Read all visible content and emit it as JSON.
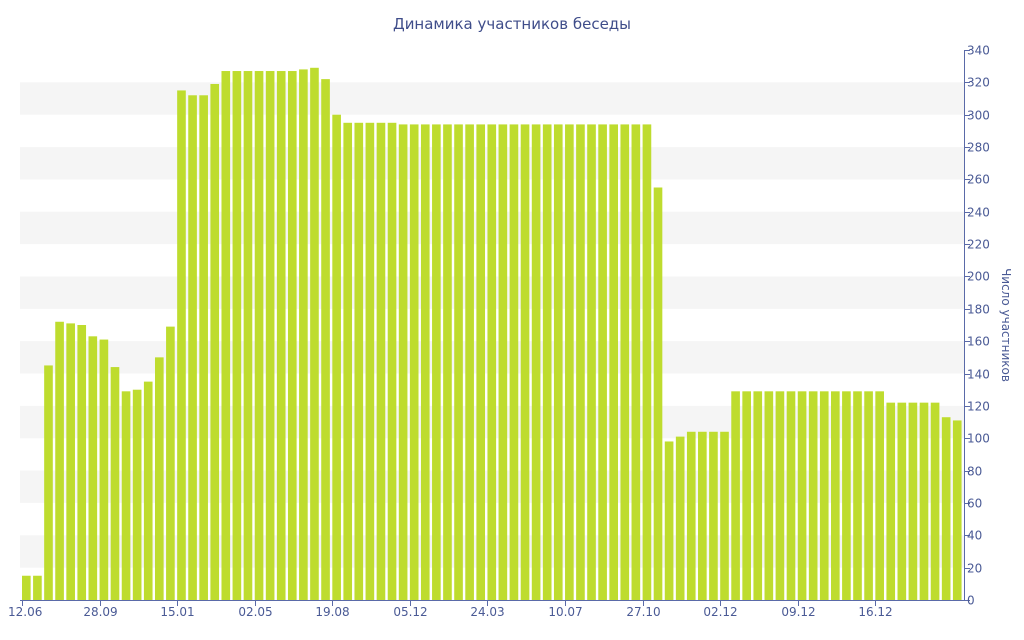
{
  "chart_data": {
    "type": "bar",
    "title": "Динамика участников беседы",
    "xlabel": "",
    "ylabel": "Число участников",
    "ylim": [
      0,
      340
    ],
    "yticks": [
      0,
      20,
      40,
      60,
      80,
      100,
      120,
      140,
      160,
      180,
      200,
      220,
      240,
      260,
      280,
      300,
      320,
      340
    ],
    "x_tick_labels": [
      {
        "label": "12.06",
        "index": 0
      },
      {
        "label": "28.09",
        "index": 7
      },
      {
        "label": "15.01",
        "index": 14
      },
      {
        "label": "02.05",
        "index": 21
      },
      {
        "label": "19.08",
        "index": 28
      },
      {
        "label": "05.12",
        "index": 35
      },
      {
        "label": "24.03",
        "index": 42
      },
      {
        "label": "10.07",
        "index": 49
      },
      {
        "label": "27.10",
        "index": 56
      },
      {
        "label": "02.12",
        "index": 63
      },
      {
        "label": "09.12",
        "index": 70
      },
      {
        "label": "16.12",
        "index": 77
      }
    ],
    "bar_color": "#bedc2e",
    "grid": "alternating horizontal bands",
    "values": [
      15,
      15,
      145,
      172,
      171,
      170,
      163,
      161,
      144,
      129,
      130,
      135,
      150,
      169,
      315,
      312,
      312,
      319,
      327,
      327,
      327,
      327,
      327,
      327,
      327,
      328,
      329,
      322,
      300,
      295,
      295,
      295,
      295,
      295,
      294,
      294,
      294,
      294,
      294,
      294,
      294,
      294,
      294,
      294,
      294,
      294,
      294,
      294,
      294,
      294,
      294,
      294,
      294,
      294,
      294,
      294,
      294,
      255,
      98,
      101,
      104,
      104,
      104,
      104,
      129,
      129,
      129,
      129,
      129,
      129,
      129,
      129,
      129,
      129,
      129,
      129,
      129,
      129,
      122,
      122,
      122,
      122,
      122,
      113,
      111
    ]
  }
}
